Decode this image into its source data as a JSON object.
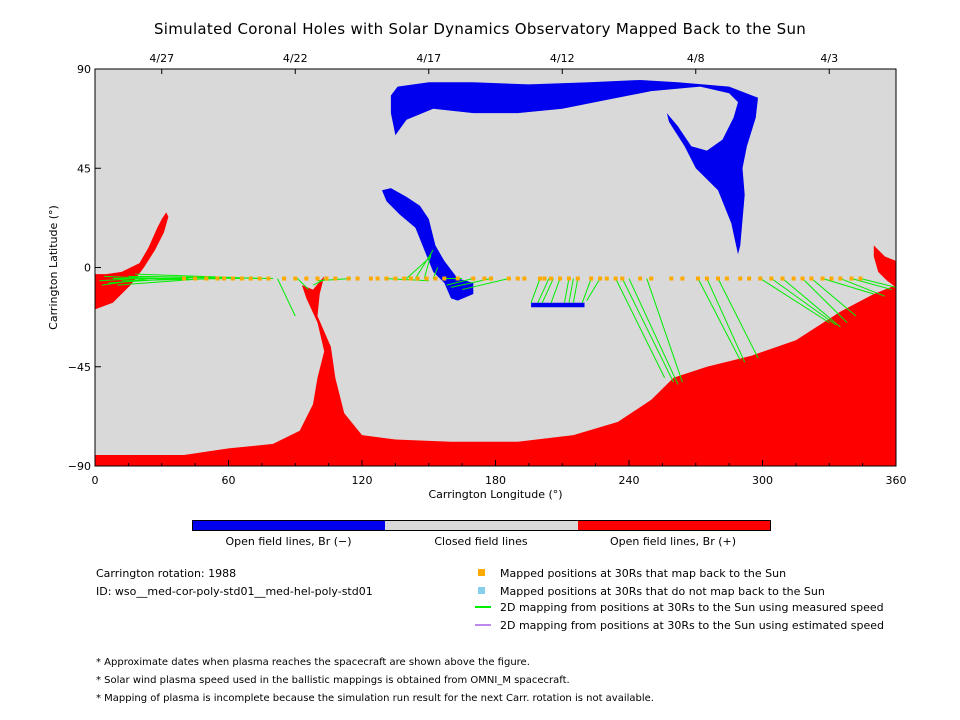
{
  "title": "Simulated Coronal Holes with Solar Dynamics Observatory Mapped Back to the Sun",
  "colors": {
    "background": "#d9d9d9",
    "open_negative": "#0000ee",
    "open_positive": "#ff0000",
    "closed": "#d9d9d9",
    "mapped_position": "#ffaa00",
    "unmapped_position": "#87ceeb",
    "measured_line": "#00ee00",
    "estimated_line": "#bb88ee"
  },
  "chart_data": {
    "type": "scatter",
    "xlabel": "Carrington Longitude (°)",
    "ylabel": "Carrington Latitude (°)",
    "xlim": [
      0,
      360
    ],
    "ylim": [
      -90,
      90
    ],
    "xticks": [
      0,
      60,
      120,
      180,
      240,
      300,
      360
    ],
    "yticks": [
      -90,
      -45,
      0,
      45,
      90
    ],
    "top_axis": {
      "ticks": [
        {
          "lon": 30,
          "label": "4/27"
        },
        {
          "lon": 90,
          "label": "4/22"
        },
        {
          "lon": 150,
          "label": "4/17"
        },
        {
          "lon": 210,
          "label": "4/12"
        },
        {
          "lon": 270,
          "label": "4/8"
        },
        {
          "lon": 330,
          "label": "4/3"
        }
      ]
    },
    "coronal_holes": {
      "negative": [
        [
          [
            133,
            78
          ],
          [
            136,
            82
          ],
          [
            150,
            84
          ],
          [
            170,
            84
          ],
          [
            195,
            83
          ],
          [
            222,
            84
          ],
          [
            245,
            85
          ],
          [
            262,
            84
          ],
          [
            285,
            82
          ],
          [
            298,
            77
          ],
          [
            297,
            68
          ],
          [
            293,
            55
          ],
          [
            291,
            45
          ],
          [
            292,
            33
          ],
          [
            290,
            10
          ],
          [
            289,
            6
          ],
          [
            286,
            20
          ],
          [
            280,
            35
          ],
          [
            270,
            45
          ],
          [
            265,
            55
          ],
          [
            258,
            66
          ],
          [
            257,
            70
          ],
          [
            262,
            64
          ],
          [
            268,
            55
          ],
          [
            275,
            53
          ],
          [
            282,
            58
          ],
          [
            287,
            68
          ],
          [
            289,
            75
          ],
          [
            285,
            79
          ],
          [
            272,
            82
          ],
          [
            250,
            80
          ],
          [
            230,
            76
          ],
          [
            210,
            72
          ],
          [
            190,
            70
          ],
          [
            170,
            70
          ],
          [
            152,
            72
          ],
          [
            140,
            67
          ],
          [
            135,
            60
          ],
          [
            133,
            70
          ]
        ],
        [
          [
            129,
            35
          ],
          [
            133,
            36
          ],
          [
            140,
            32
          ],
          [
            146,
            28
          ],
          [
            150,
            22
          ],
          [
            153,
            10
          ],
          [
            157,
            3
          ],
          [
            163,
            -5
          ],
          [
            170,
            -7
          ],
          [
            170,
            -12
          ],
          [
            163,
            -15
          ],
          [
            160,
            -14
          ],
          [
            157,
            -7
          ],
          [
            152,
            -2
          ],
          [
            148,
            8
          ],
          [
            144,
            18
          ],
          [
            137,
            24
          ],
          [
            131,
            30
          ]
        ],
        [
          [
            196,
            -16
          ],
          [
            220,
            -16
          ],
          [
            220,
            -18
          ],
          [
            196,
            -18
          ]
        ]
      ],
      "positive": [
        [
          [
            0,
            -85
          ],
          [
            40,
            -85
          ],
          [
            60,
            -82
          ],
          [
            80,
            -80
          ],
          [
            92,
            -74
          ],
          [
            98,
            -62
          ],
          [
            100,
            -50
          ],
          [
            103,
            -38
          ],
          [
            100,
            -25
          ],
          [
            95,
            -14
          ],
          [
            93,
            -8
          ],
          [
            98,
            -10
          ],
          [
            103,
            -4
          ],
          [
            101,
            -12
          ],
          [
            100,
            -22
          ],
          [
            106,
            -36
          ],
          [
            108,
            -50
          ],
          [
            112,
            -66
          ],
          [
            120,
            -76
          ],
          [
            135,
            -78
          ],
          [
            160,
            -79
          ],
          [
            190,
            -79
          ],
          [
            215,
            -76
          ],
          [
            235,
            -70
          ],
          [
            250,
            -60
          ],
          [
            260,
            -50
          ],
          [
            275,
            -45
          ],
          [
            295,
            -40
          ],
          [
            315,
            -33
          ],
          [
            335,
            -20
          ],
          [
            350,
            -12
          ],
          [
            360,
            -8
          ],
          [
            360,
            -90
          ],
          [
            0,
            -90
          ]
        ],
        [
          [
            0,
            -3
          ],
          [
            5,
            -3
          ],
          [
            12,
            -2
          ],
          [
            20,
            2
          ],
          [
            24,
            9
          ],
          [
            28,
            18
          ],
          [
            30,
            22
          ],
          [
            32,
            25
          ],
          [
            33,
            23
          ],
          [
            31,
            16
          ],
          [
            27,
            8
          ],
          [
            22,
            0
          ],
          [
            16,
            -8
          ],
          [
            8,
            -16
          ],
          [
            0,
            -19
          ]
        ],
        [
          [
            350,
            10
          ],
          [
            355,
            5
          ],
          [
            360,
            3
          ],
          [
            360,
            -9
          ],
          [
            356,
            -6
          ],
          [
            352,
            -2
          ],
          [
            350,
            5
          ]
        ]
      ]
    },
    "mapped_points_30Rs": [
      {
        "lon": 40,
        "lat": -5
      },
      {
        "lon": 45,
        "lat": -5
      },
      {
        "lon": 50,
        "lat": -5
      },
      {
        "lon": 55,
        "lat": -5
      },
      {
        "lon": 58,
        "lat": -5
      },
      {
        "lon": 62,
        "lat": -5
      },
      {
        "lon": 66,
        "lat": -5
      },
      {
        "lon": 70,
        "lat": -5
      },
      {
        "lon": 74,
        "lat": -5
      },
      {
        "lon": 78,
        "lat": -5
      },
      {
        "lon": 85,
        "lat": -5
      },
      {
        "lon": 90,
        "lat": -5
      },
      {
        "lon": 95,
        "lat": -5
      },
      {
        "lon": 100,
        "lat": -5
      },
      {
        "lon": 104,
        "lat": -5
      },
      {
        "lon": 108,
        "lat": -5
      },
      {
        "lon": 114,
        "lat": -5
      },
      {
        "lon": 118,
        "lat": -5
      },
      {
        "lon": 124,
        "lat": -5
      },
      {
        "lon": 127,
        "lat": -5
      },
      {
        "lon": 131,
        "lat": -5
      },
      {
        "lon": 135,
        "lat": -5
      },
      {
        "lon": 139,
        "lat": -5
      },
      {
        "lon": 142,
        "lat": -5
      },
      {
        "lon": 145,
        "lat": -5
      },
      {
        "lon": 149,
        "lat": -5
      },
      {
        "lon": 153,
        "lat": -5
      },
      {
        "lon": 157,
        "lat": -5
      },
      {
        "lon": 163,
        "lat": -5
      },
      {
        "lon": 170,
        "lat": -5
      },
      {
        "lon": 175,
        "lat": -5
      },
      {
        "lon": 178,
        "lat": -5
      },
      {
        "lon": 186,
        "lat": -5
      },
      {
        "lon": 190,
        "lat": -5
      },
      {
        "lon": 193,
        "lat": -5
      },
      {
        "lon": 200,
        "lat": -5
      },
      {
        "lon": 202,
        "lat": -5
      },
      {
        "lon": 205,
        "lat": -5
      },
      {
        "lon": 209,
        "lat": -5
      },
      {
        "lon": 213,
        "lat": -5
      },
      {
        "lon": 217,
        "lat": -5
      },
      {
        "lon": 223,
        "lat": -5
      },
      {
        "lon": 227,
        "lat": -5
      },
      {
        "lon": 230,
        "lat": -5
      },
      {
        "lon": 234,
        "lat": -5
      },
      {
        "lon": 237,
        "lat": -5
      },
      {
        "lon": 245,
        "lat": -5
      },
      {
        "lon": 250,
        "lat": -5
      },
      {
        "lon": 259,
        "lat": -5
      },
      {
        "lon": 264,
        "lat": -5
      },
      {
        "lon": 271,
        "lat": -5
      },
      {
        "lon": 275,
        "lat": -5
      },
      {
        "lon": 280,
        "lat": -5
      },
      {
        "lon": 284,
        "lat": -5
      },
      {
        "lon": 290,
        "lat": -5
      },
      {
        "lon": 294,
        "lat": -5
      },
      {
        "lon": 299,
        "lat": -5
      },
      {
        "lon": 304,
        "lat": -5
      },
      {
        "lon": 309,
        "lat": -5
      },
      {
        "lon": 314,
        "lat": -5
      },
      {
        "lon": 318,
        "lat": -5
      },
      {
        "lon": 322,
        "lat": -5
      },
      {
        "lon": 327,
        "lat": -5
      },
      {
        "lon": 331,
        "lat": -5
      },
      {
        "lon": 335,
        "lat": -5
      },
      {
        "lon": 340,
        "lat": -5
      },
      {
        "lon": 344,
        "lat": -5
      }
    ],
    "measured_mappings": [
      {
        "from": [
          20,
          -5
        ],
        "to": [
          2,
          -6
        ]
      },
      {
        "from": [
          24,
          -5
        ],
        "to": [
          3,
          -8
        ]
      },
      {
        "from": [
          28,
          -5
        ],
        "to": [
          4,
          -4
        ]
      },
      {
        "from": [
          36,
          -5
        ],
        "to": [
          6,
          -7
        ]
      },
      {
        "from": [
          42,
          -5
        ],
        "to": [
          8,
          -5
        ]
      },
      {
        "from": [
          50,
          -5
        ],
        "to": [
          10,
          -8
        ]
      },
      {
        "from": [
          58,
          -5
        ],
        "to": [
          12,
          -6
        ]
      },
      {
        "from": [
          66,
          -5
        ],
        "to": [
          15,
          -4
        ]
      },
      {
        "from": [
          75,
          -5
        ],
        "to": [
          18,
          -3
        ]
      },
      {
        "from": [
          80,
          -5
        ],
        "to": [
          20,
          -4
        ]
      },
      {
        "from": [
          82,
          -5
        ],
        "to": [
          90,
          -22
        ]
      },
      {
        "from": [
          91,
          -5
        ],
        "to": [
          96,
          -10
        ]
      },
      {
        "from": [
          104,
          -5
        ],
        "to": [
          98,
          -8
        ]
      },
      {
        "from": [
          115,
          -5
        ],
        "to": [
          100,
          -6
        ]
      },
      {
        "from": [
          130,
          -5
        ],
        "to": [
          150,
          -6
        ]
      },
      {
        "from": [
          140,
          -5
        ],
        "to": [
          151,
          5
        ]
      },
      {
        "from": [
          144,
          -5
        ],
        "to": [
          152,
          8
        ]
      },
      {
        "from": [
          148,
          -5
        ],
        "to": [
          151,
          6
        ]
      },
      {
        "from": [
          152,
          -5
        ],
        "to": [
          154,
          0
        ]
      },
      {
        "from": [
          157,
          -5
        ],
        "to": [
          165,
          -5
        ]
      },
      {
        "from": [
          170,
          -5
        ],
        "to": [
          158,
          -8
        ]
      },
      {
        "from": [
          178,
          -5
        ],
        "to": [
          160,
          -9
        ]
      },
      {
        "from": [
          186,
          -5
        ],
        "to": [
          165,
          -10
        ]
      },
      {
        "from": [
          200,
          -5
        ],
        "to": [
          196,
          -16
        ]
      },
      {
        "from": [
          204,
          -5
        ],
        "to": [
          199,
          -16
        ]
      },
      {
        "from": [
          206,
          -5
        ],
        "to": [
          201,
          -16
        ]
      },
      {
        "from": [
          209,
          -5
        ],
        "to": [
          205,
          -16
        ]
      },
      {
        "from": [
          213,
          -5
        ],
        "to": [
          211,
          -16
        ]
      },
      {
        "from": [
          215,
          -5
        ],
        "to": [
          213,
          -16
        ]
      },
      {
        "from": [
          217,
          -5
        ],
        "to": [
          215,
          -16
        ]
      },
      {
        "from": [
          223,
          -5
        ],
        "to": [
          219,
          -16
        ]
      },
      {
        "from": [
          227,
          -5
        ],
        "to": [
          221,
          -15
        ]
      },
      {
        "from": [
          234,
          -5
        ],
        "to": [
          256,
          -50
        ]
      },
      {
        "from": [
          237,
          -5
        ],
        "to": [
          260,
          -52
        ]
      },
      {
        "from": [
          240,
          -5
        ],
        "to": [
          262,
          -53
        ]
      },
      {
        "from": [
          248,
          -5
        ],
        "to": [
          264,
          -52
        ]
      },
      {
        "from": [
          271,
          -5
        ],
        "to": [
          290,
          -42
        ]
      },
      {
        "from": [
          275,
          -5
        ],
        "to": [
          292,
          -43
        ]
      },
      {
        "from": [
          280,
          -5
        ],
        "to": [
          298,
          -41
        ]
      },
      {
        "from": [
          299,
          -5
        ],
        "to": [
          330,
          -25
        ]
      },
      {
        "from": [
          304,
          -5
        ],
        "to": [
          333,
          -26
        ]
      },
      {
        "from": [
          309,
          -5
        ],
        "to": [
          335,
          -27
        ]
      },
      {
        "from": [
          318,
          -5
        ],
        "to": [
          338,
          -25
        ]
      },
      {
        "from": [
          322,
          -5
        ],
        "to": [
          342,
          -22
        ]
      },
      {
        "from": [
          327,
          -5
        ],
        "to": [
          350,
          -12
        ]
      },
      {
        "from": [
          335,
          -5
        ],
        "to": [
          355,
          -13
        ]
      },
      {
        "from": [
          340,
          -5
        ],
        "to": [
          358,
          -10
        ]
      },
      {
        "from": [
          344,
          -5
        ],
        "to": [
          360,
          -9
        ]
      }
    ]
  },
  "colorbar": {
    "labels": [
      "Open field lines, Br (−)",
      "Closed field lines",
      "Open field lines, Br (+)"
    ]
  },
  "info": {
    "rotation": "Carrington rotation: 1988",
    "id": "ID: wso__med-cor-poly-std01__med-hel-poly-std01"
  },
  "legend": [
    {
      "kind": "square",
      "color_key": "mapped_position",
      "label": "Mapped positions at 30Rs that map back to the Sun"
    },
    {
      "kind": "square",
      "color_key": "unmapped_position",
      "label": "Mapped positions at 30Rs that do not map back to the Sun"
    },
    {
      "kind": "line",
      "color_key": "measured_line",
      "label": "2D mapping from positions at 30Rs to the Sun using measured speed"
    },
    {
      "kind": "line",
      "color_key": "estimated_line",
      "label": "2D mapping from positions at 30Rs to the Sun using estimated speed"
    }
  ],
  "notes": [
    "* Approximate dates when plasma reaches the spacecraft are shown above the figure.",
    "* Solar wind plasma speed used in the ballistic mappings is obtained from OMNI_M spacecraft.",
    "* Mapping of plasma is incomplete because the simulation run result for the next Carr. rotation is not available."
  ]
}
